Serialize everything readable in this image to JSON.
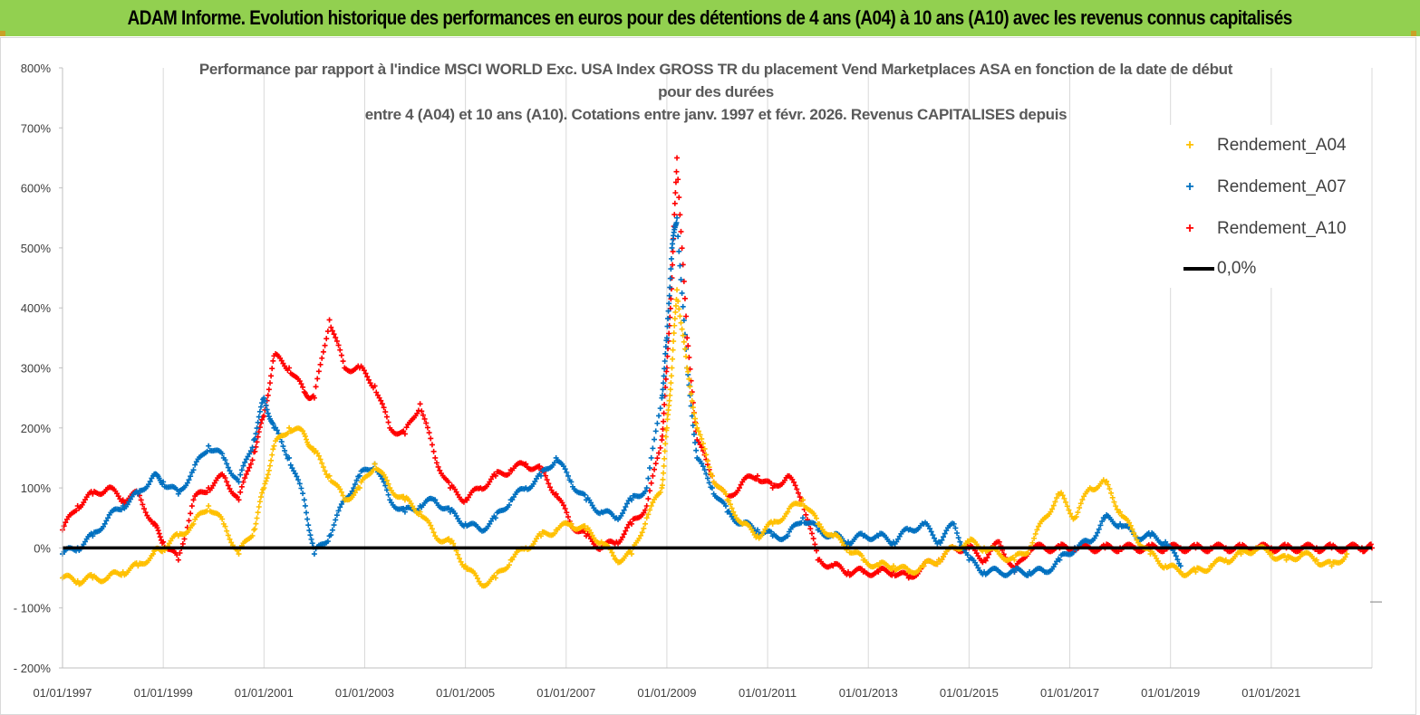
{
  "banner": {
    "title": "ADAM Informe. Evolution historique des performances en euros pour des détentions de 4 ans (A04) à 10 ans (A10) avec les revenus connus capitalisés"
  },
  "colors": {
    "banner_bg": "#92d050",
    "a04": "#ffc000",
    "a07": "#0070c0",
    "a10": "#ff0000",
    "zero_line": "#000000",
    "grid": "#d9d9d9"
  },
  "chart_data": {
    "type": "scatter",
    "title_lines": [
      "Performance par rapport à l'indice MSCI WORLD Exc. USA Index GROSS TR  du placement Vend Marketplaces ASA en fonction de la date de début",
      "pour des durées",
      "entre 4 (A04) et 10 ans (A10). Cotations entre janv. 1997 et févr. 2026. Revenus CAPITALISES depuis"
    ],
    "xlabel": "",
    "ylabel": "",
    "x_range": [
      1997.0,
      2023.0
    ],
    "x_tick_values": [
      1997,
      1999,
      2001,
      2003,
      2005,
      2007,
      2009,
      2011,
      2013,
      2015,
      2017,
      2019,
      2021
    ],
    "x_tick_labels": [
      "01/01/1997",
      "01/01/1999",
      "01/01/2001",
      "01/01/2003",
      "01/01/2005",
      "01/01/2007",
      "01/01/2009",
      "01/01/2011",
      "01/01/2013",
      "01/01/2015",
      "01/01/2017",
      "01/01/2019",
      "01/01/2021"
    ],
    "ylim": [
      -200,
      800
    ],
    "y_tick_values": [
      -200,
      -100,
      0,
      100,
      200,
      300,
      400,
      500,
      600,
      700,
      800
    ],
    "y_tick_labels": [
      "- 200%",
      "- 100%",
      "0%",
      "100%",
      "200%",
      "300%",
      "400%",
      "500%",
      "600%",
      "700%",
      "800%"
    ],
    "grid": "vertical",
    "legend_position": "top-right",
    "legend": [
      {
        "label": "Rendement_A04",
        "marker": "+",
        "color": "#ffc000"
      },
      {
        "label": "Rendement_A07",
        "marker": "+",
        "color": "#0070c0"
      },
      {
        "label": "Rendement_A10",
        "marker": "+",
        "color": "#ff0000"
      },
      {
        "label": "0,0%",
        "marker": "line",
        "color": "#000000"
      }
    ],
    "reference_line": {
      "label": "0,0%",
      "y": 0
    },
    "series": [
      {
        "name": "Rendement_A10",
        "color": "#ff0000",
        "x": [
          1997.0,
          1997.3,
          1997.6,
          1997.9,
          1998.2,
          1998.5,
          1998.8,
          1999.0,
          1999.3,
          1999.6,
          1999.9,
          2000.2,
          2000.5,
          2000.8,
          2001.0,
          2001.2,
          2001.5,
          2001.8,
          2002.0,
          2002.3,
          2002.6,
          2002.9,
          2003.2,
          2003.5,
          2003.8,
          2004.1,
          2004.4,
          2004.7,
          2005.0,
          2005.3,
          2005.6,
          2005.9,
          2006.2,
          2006.5,
          2006.8,
          2007.1,
          2007.4,
          2007.7,
          2008.0,
          2008.3,
          2008.6,
          2008.9,
          2009.0,
          2009.1,
          2009.2,
          2009.4,
          2009.6,
          2009.9,
          2010.2,
          2010.5,
          2010.8,
          2011.1,
          2011.4,
          2011.7,
          2012.0,
          2012.3,
          2012.6,
          2012.9,
          2013.2,
          2013.5,
          2013.8,
          2014.1,
          2014.4,
          2014.7,
          2015.0,
          2015.3,
          2015.6,
          2015.9,
          2016.2,
          2016.5,
          2016.8,
          2017.1,
          2017.4,
          2017.7,
          2018.0,
          2018.3,
          2018.6,
          2018.9,
          2019.2,
          2019.5,
          2019.8,
          2020.1,
          2020.4,
          2020.7,
          2021.0,
          2021.3,
          2021.6,
          2021.9,
          2022.2,
          2022.5,
          2022.8,
          2023.0
        ],
        "values": [
          30,
          70,
          90,
          100,
          80,
          90,
          40,
          10,
          -20,
          80,
          100,
          120,
          80,
          160,
          220,
          320,
          300,
          260,
          250,
          380,
          300,
          300,
          270,
          200,
          190,
          240,
          150,
          100,
          80,
          100,
          120,
          130,
          140,
          130,
          90,
          40,
          20,
          0,
          10,
          40,
          70,
          180,
          300,
          450,
          650,
          350,
          180,
          120,
          80,
          110,
          120,
          100,
          120,
          80,
          -20,
          -30,
          -40,
          -40,
          -40,
          -40,
          -50,
          -30,
          -20,
          0,
          0,
          -20,
          10,
          -40,
          0,
          0,
          0,
          0,
          0,
          0,
          0,
          0,
          0,
          0,
          0,
          0,
          0,
          0,
          0,
          0,
          0,
          0,
          0,
          0,
          0,
          0,
          0,
          0
        ]
      },
      {
        "name": "Rendement_A07",
        "color": "#0070c0",
        "x": [
          1997.0,
          1997.3,
          1997.6,
          1997.9,
          1998.2,
          1998.5,
          1998.8,
          1999.0,
          1999.3,
          1999.6,
          1999.9,
          2000.2,
          2000.5,
          2000.8,
          2001.0,
          2001.2,
          2001.5,
          2001.8,
          2002.0,
          2002.3,
          2002.6,
          2002.9,
          2003.2,
          2003.5,
          2003.8,
          2004.1,
          2004.4,
          2004.7,
          2005.0,
          2005.3,
          2005.6,
          2005.9,
          2006.2,
          2006.5,
          2006.8,
          2007.1,
          2007.4,
          2007.7,
          2008.0,
          2008.3,
          2008.6,
          2008.9,
          2009.0,
          2009.1,
          2009.2,
          2009.4,
          2009.6,
          2009.9,
          2010.2,
          2010.5,
          2010.8,
          2011.1,
          2011.4,
          2011.7,
          2012.0,
          2012.3,
          2012.6,
          2012.9,
          2013.2,
          2013.5,
          2013.8,
          2014.1,
          2014.4,
          2014.7,
          2015.0,
          2015.3,
          2015.6,
          2015.9,
          2016.2,
          2016.5,
          2016.8,
          2017.1,
          2017.4,
          2017.7,
          2018.0,
          2018.3,
          2018.6,
          2018.9,
          2019.2
        ],
        "values": [
          -10,
          0,
          20,
          50,
          70,
          90,
          120,
          110,
          90,
          130,
          170,
          150,
          110,
          180,
          250,
          200,
          150,
          80,
          -10,
          20,
          80,
          120,
          140,
          80,
          60,
          70,
          80,
          60,
          40,
          30,
          50,
          80,
          100,
          120,
          150,
          110,
          80,
          60,
          50,
          80,
          100,
          250,
          350,
          500,
          550,
          300,
          150,
          100,
          60,
          40,
          30,
          20,
          20,
          50,
          30,
          20,
          10,
          20,
          20,
          10,
          30,
          40,
          10,
          40,
          -20,
          -40,
          -40,
          -40,
          -40,
          -40,
          -20,
          0,
          10,
          50,
          40,
          20,
          20,
          10,
          -30
        ]
      },
      {
        "name": "Rendement_A04",
        "color": "#ffc000",
        "x": [
          1997.0,
          1997.3,
          1997.6,
          1997.9,
          1998.2,
          1998.5,
          1998.8,
          1999.0,
          1999.3,
          1999.6,
          1999.9,
          2000.2,
          2000.5,
          2000.8,
          2001.0,
          2001.2,
          2001.5,
          2001.8,
          2002.0,
          2002.3,
          2002.6,
          2002.9,
          2003.2,
          2003.5,
          2003.8,
          2004.1,
          2004.4,
          2004.7,
          2005.0,
          2005.3,
          2005.6,
          2005.9,
          2006.2,
          2006.5,
          2006.8,
          2007.1,
          2007.4,
          2007.7,
          2008.0,
          2008.3,
          2008.6,
          2008.9,
          2009.0,
          2009.1,
          2009.2,
          2009.4,
          2009.6,
          2009.9,
          2010.2,
          2010.5,
          2010.8,
          2011.1,
          2011.4,
          2011.7,
          2012.0,
          2012.3,
          2012.6,
          2012.9,
          2013.2,
          2013.5,
          2013.8,
          2014.1,
          2014.4,
          2014.7,
          2015.0,
          2015.3,
          2015.6,
          2015.9,
          2016.2,
          2016.5,
          2016.8,
          2017.1,
          2017.4,
          2017.7,
          2018.0,
          2018.3,
          2018.6,
          2018.9,
          2019.2,
          2019.5,
          2019.8,
          2020.1,
          2020.4,
          2020.7,
          2021.0,
          2021.3,
          2021.6,
          2021.9,
          2022.2,
          2022.5
        ],
        "values": [
          -50,
          -55,
          -50,
          -50,
          -40,
          -30,
          -10,
          0,
          20,
          40,
          70,
          40,
          -10,
          30,
          100,
          170,
          200,
          190,
          160,
          120,
          80,
          100,
          140,
          100,
          80,
          60,
          20,
          10,
          -30,
          -60,
          -50,
          -20,
          0,
          20,
          30,
          40,
          30,
          10,
          -20,
          -10,
          50,
          100,
          200,
          300,
          430,
          300,
          200,
          120,
          80,
          40,
          20,
          40,
          60,
          80,
          40,
          20,
          0,
          -20,
          -30,
          -30,
          -40,
          -30,
          -20,
          0,
          10,
          0,
          -10,
          -20,
          0,
          50,
          90,
          50,
          100,
          110,
          60,
          20,
          -10,
          -30,
          -40,
          -40,
          -30,
          -20,
          -10,
          0,
          -10,
          -20,
          -10,
          -20,
          -30,
          -10
        ]
      }
    ]
  }
}
